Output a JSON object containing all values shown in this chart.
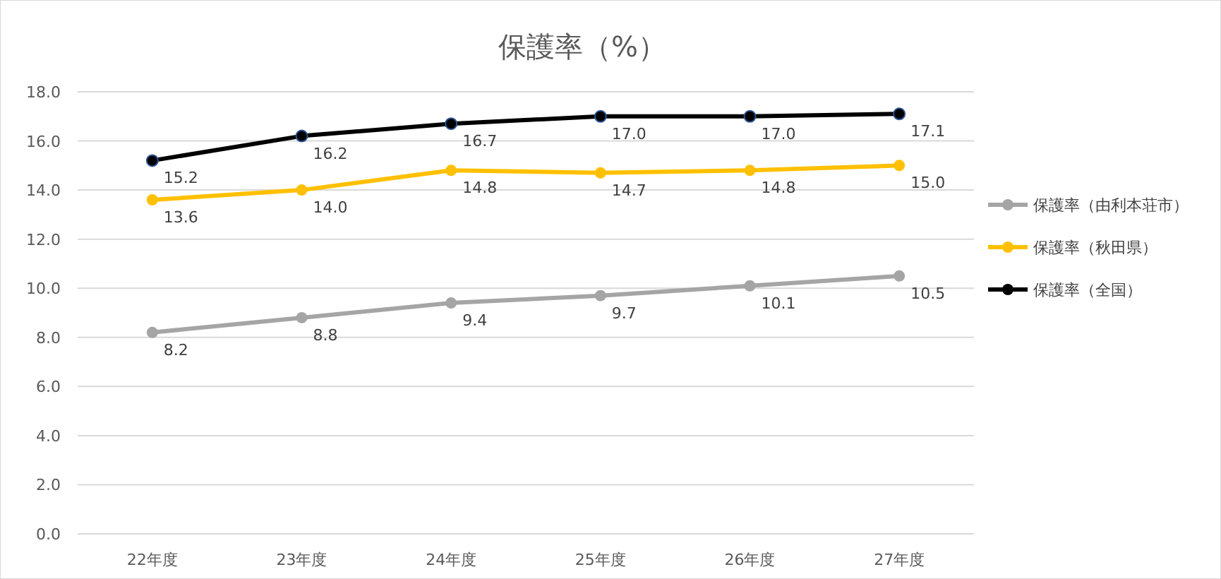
{
  "chart_data": {
    "type": "line",
    "title": "保護率（%）",
    "categories": [
      "22年度",
      "23年度",
      "24年度",
      "25年度",
      "26年度",
      "27年度"
    ],
    "series": [
      {
        "name": "保護率（由利本荘市）",
        "color": "#a5a5a5",
        "values": [
          8.2,
          8.8,
          9.4,
          9.7,
          10.1,
          10.5
        ],
        "value_labels": [
          "8.2",
          "8.8",
          "9.4",
          "9.7",
          "10.1",
          "10.5"
        ]
      },
      {
        "name": "保護率（秋田県）",
        "color": "#ffc000",
        "values": [
          13.6,
          14.0,
          14.8,
          14.7,
          14.8,
          15.0
        ],
        "value_labels": [
          "13.6",
          "14.0",
          "14.8",
          "14.7",
          "14.8",
          "15.0"
        ]
      },
      {
        "name": "保護率（全国）",
        "color": "#000000",
        "values": [
          15.2,
          16.2,
          16.7,
          17.0,
          17.0,
          17.1
        ],
        "value_labels": [
          "15.2",
          "16.2",
          "16.7",
          "17.0",
          "17.0",
          "17.1"
        ]
      }
    ],
    "ylim": [
      0,
      18
    ],
    "yticks": [
      {
        "value": 0,
        "label": "0.0"
      },
      {
        "value": 2,
        "label": "2.0"
      },
      {
        "value": 4,
        "label": "4.0"
      },
      {
        "value": 6,
        "label": "6.0"
      },
      {
        "value": 8,
        "label": "8.0"
      },
      {
        "value": 10,
        "label": "10.0"
      },
      {
        "value": 12,
        "label": "12.0"
      },
      {
        "value": 14,
        "label": "14.0"
      },
      {
        "value": 16,
        "label": "16.0"
      },
      {
        "value": 18,
        "label": "18.0"
      }
    ],
    "grid": "y",
    "legend": "right",
    "marker": "circle"
  }
}
